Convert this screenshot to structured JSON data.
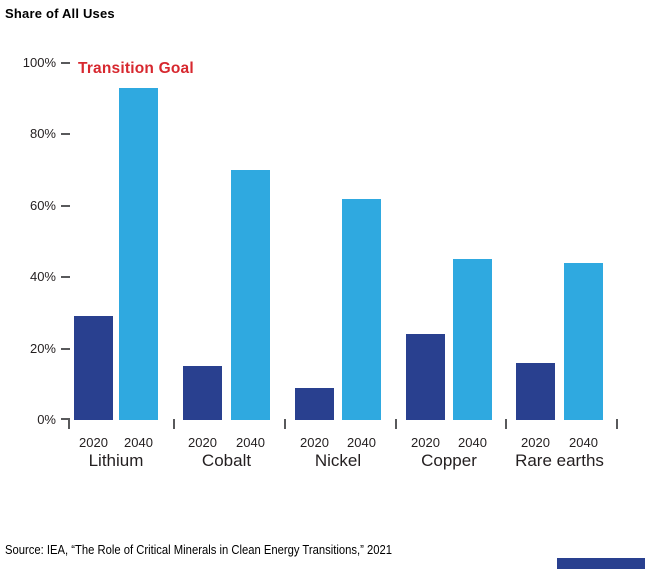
{
  "ui": {
    "title": "Share of All Uses",
    "annotation": {
      "label": "Transition Goal",
      "color": "#d7282f"
    },
    "source_note": "Source: IEA, “The Role of Critical Minerals in Clean Energy Transitions,” 2021",
    "colors": {
      "bar_2020": "#29408f",
      "bar_2040": "#2fa9e0",
      "footer_strip": "#29408f",
      "tick": "#58595b",
      "text": "#231f20"
    }
  },
  "chart_data": {
    "type": "bar",
    "title": "Share of All Uses",
    "categories": [
      "Lithium",
      "Cobalt",
      "Nickel",
      "Copper",
      "Rare earths"
    ],
    "series": [
      {
        "name": "2020",
        "color": "#29408f",
        "values": [
          29,
          15,
          9,
          24,
          16
        ]
      },
      {
        "name": "2040",
        "color": "#2fa9e0",
        "values": [
          93,
          70,
          62,
          45,
          44
        ]
      }
    ],
    "yticks": [
      0,
      20,
      40,
      60,
      80,
      100
    ],
    "ytick_suffix": "%",
    "ylim": [
      0,
      100
    ],
    "grid": false,
    "legend": "none",
    "annotation": "Transition Goal"
  }
}
